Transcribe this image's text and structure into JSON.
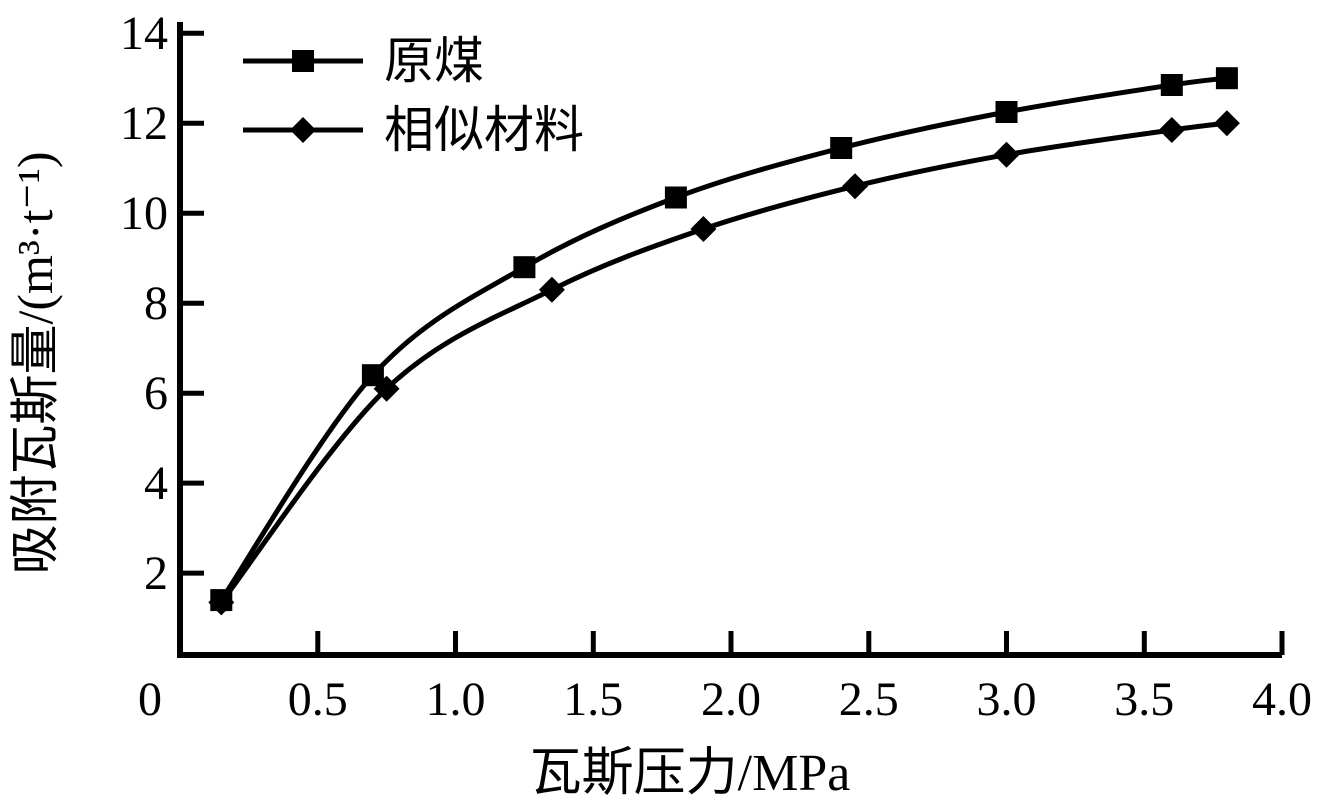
{
  "figure": {
    "background": "#ffffff",
    "foreground": "#000000"
  },
  "chart_data": {
    "type": "line",
    "title": "",
    "xlabel": "瓦斯压力/MPa",
    "ylabel": "吸附瓦斯量/(m³·t⁻¹)",
    "xlim": [
      0,
      4.0
    ],
    "ylim": [
      0.18,
      14.25
    ],
    "x_ticks": [
      0,
      0.5,
      1.0,
      1.5,
      2.0,
      2.5,
      3.0,
      3.5,
      4.0
    ],
    "x_tick_labels": [
      "0",
      "0.5",
      "1.0",
      "1.5",
      "2.0",
      "2.5",
      "3.0",
      "3.5",
      "4.0"
    ],
    "y_ticks": [
      2,
      4,
      6,
      8,
      10,
      12,
      14
    ],
    "y_tick_labels": [
      "2",
      "4",
      "6",
      "8",
      "10",
      "12",
      "14"
    ],
    "grid": false,
    "legend_position": "top-left",
    "line_color": "#000000",
    "series": [
      {
        "name": "原煤",
        "marker": "square",
        "points": [
          [
            0.15,
            1.4
          ],
          [
            0.7,
            6.4
          ],
          [
            1.25,
            8.8
          ],
          [
            1.8,
            10.35
          ],
          [
            2.4,
            11.45
          ],
          [
            3.0,
            12.25
          ],
          [
            3.6,
            12.85
          ],
          [
            3.8,
            13.0
          ]
        ]
      },
      {
        "name": "相似材料",
        "marker": "diamond",
        "points": [
          [
            0.15,
            1.35
          ],
          [
            0.75,
            6.1
          ],
          [
            1.35,
            8.3
          ],
          [
            1.9,
            9.65
          ],
          [
            2.45,
            10.6
          ],
          [
            3.0,
            11.3
          ],
          [
            3.6,
            11.85
          ],
          [
            3.8,
            12.0
          ]
        ]
      }
    ]
  }
}
